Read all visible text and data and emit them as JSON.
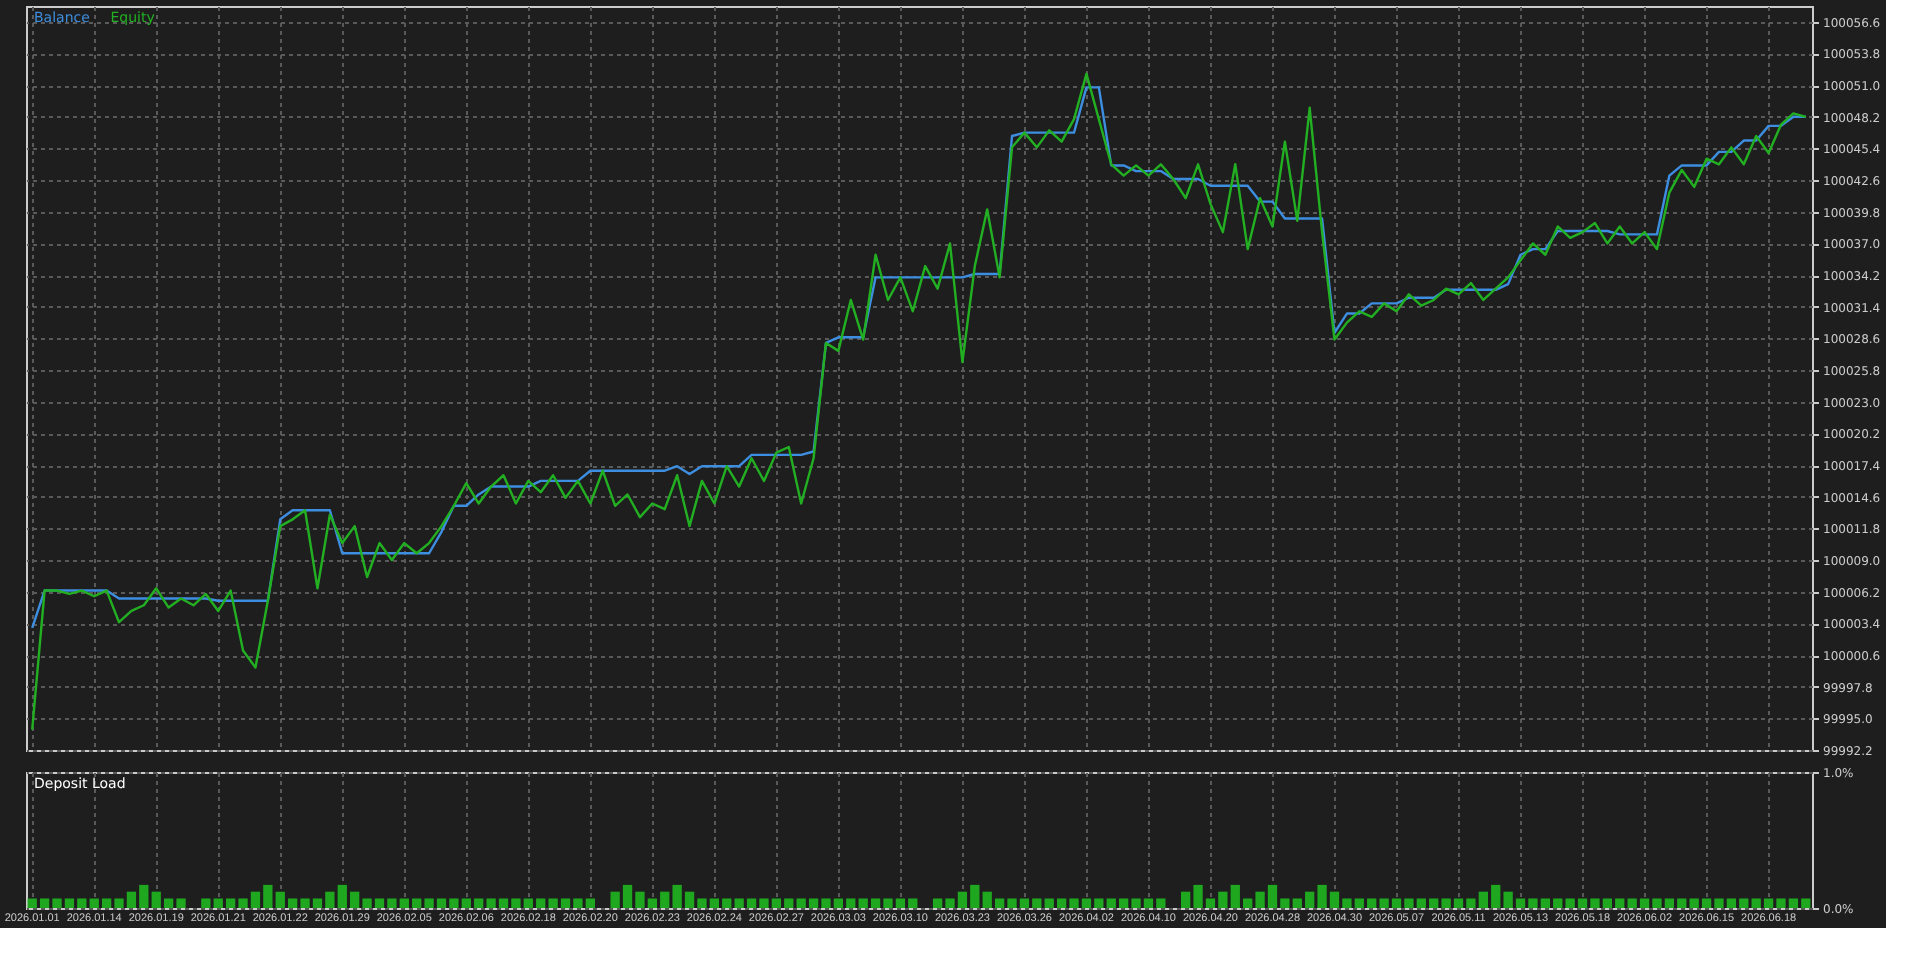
{
  "chart_data": [
    {
      "type": "line",
      "legend": "top left",
      "grid": true,
      "tick_labels": "y",
      "categories": [
        "2026.01.01",
        null,
        null,
        null,
        null,
        "2026.01.14",
        null,
        null,
        null,
        null,
        "2026.01.19",
        null,
        null,
        null,
        null,
        "2026.01.21",
        null,
        null,
        null,
        null,
        "2026.01.22",
        null,
        null,
        null,
        null,
        "2026.01.29",
        null,
        null,
        null,
        null,
        "2026.02.05",
        null,
        null,
        null,
        null,
        "2026.02.06",
        null,
        null,
        null,
        null,
        "2026.02.18",
        null,
        null,
        null,
        null,
        "2026.02.20",
        null,
        null,
        null,
        null,
        "2026.02.23",
        null,
        null,
        null,
        null,
        "2026.02.24",
        null,
        null,
        null,
        null,
        "2026.02.27",
        null,
        null,
        null,
        null,
        "2026.03.03",
        null,
        null,
        null,
        null,
        "2026.03.10",
        null,
        null,
        null,
        null,
        "2026.03.23",
        null,
        null,
        null,
        null,
        "2026.03.26",
        null,
        null,
        null,
        null,
        "2026.04.02",
        null,
        null,
        null,
        null,
        "2026.04.10",
        null,
        null,
        null,
        null,
        "2026.04.20",
        null,
        null,
        null,
        null,
        "2026.04.28",
        null,
        null,
        null,
        null,
        "2026.04.30",
        null,
        null,
        null,
        null,
        "2026.05.07",
        null,
        null,
        null,
        null,
        "2026.05.11",
        null,
        null,
        null,
        null,
        "2026.05.13",
        null,
        null,
        null,
        null,
        "2026.05.18",
        null,
        null,
        null,
        null,
        "2026.06.02",
        null,
        null,
        null,
        null,
        "2026.06.15",
        null,
        null,
        null,
        null,
        "2026.06.18",
        null,
        null,
        null
      ],
      "ylim": [
        99992.2,
        100058.0
      ],
      "yticks": [
        99992.2,
        {
          "value": 99995.0,
          "label": "99995.0"
        },
        99997.8,
        100000.6,
        100003.4,
        100006.2,
        {
          "value": 100009.0,
          "label": "100009.0"
        },
        100011.8,
        100014.6,
        100017.4,
        100020.2,
        {
          "value": 100023.0,
          "label": "100023.0"
        },
        100025.8,
        100028.6,
        100031.4,
        100034.2,
        {
          "value": 100037.0,
          "label": "100037.0"
        },
        100039.8,
        100042.6,
        100045.4,
        100048.2,
        {
          "value": 100051.0,
          "label": "100051.0"
        },
        100053.8,
        100056.6
      ],
      "series": [
        {
          "name": "Balance",
          "color": "#3d8ee0",
          "values": [
            100003.0,
            100006.3,
            100006.3,
            100006.3,
            100006.3,
            100006.3,
            100006.3,
            100005.6,
            100005.6,
            100005.6,
            100005.6,
            100005.6,
            100005.6,
            100005.6,
            100005.6,
            100005.4,
            100005.4,
            100005.4,
            100005.4,
            100005.4,
            100012.6,
            100013.4,
            100013.4,
            100013.4,
            100013.4,
            100009.6,
            100009.6,
            100009.6,
            100009.6,
            100009.6,
            100009.6,
            100009.6,
            100009.6,
            100011.5,
            100013.8,
            100013.8,
            100014.8,
            100015.5,
            100015.5,
            100015.5,
            100015.5,
            100016.0,
            100016.0,
            100016.0,
            100016.0,
            100016.9,
            100016.9,
            100016.9,
            100016.9,
            100016.9,
            100016.9,
            100016.9,
            100017.3,
            100016.6,
            100017.3,
            100017.3,
            100017.3,
            100017.3,
            100018.3,
            100018.3,
            100018.3,
            100018.3,
            100018.3,
            100018.6,
            100028.2,
            100028.7,
            100028.7,
            100028.7,
            100034.0,
            100034.0,
            100034.0,
            100034.0,
            100034.0,
            100034.0,
            100034.0,
            100034.0,
            100034.3,
            100034.3,
            100034.3,
            100046.5,
            100046.8,
            100046.8,
            100046.8,
            100046.8,
            100046.8,
            100050.8,
            100050.8,
            100043.9,
            100043.9,
            100043.4,
            100043.4,
            100043.4,
            100042.7,
            100042.7,
            100042.7,
            100042.1,
            100042.1,
            100042.1,
            100042.1,
            100040.7,
            100040.7,
            100039.2,
            100039.2,
            100039.2,
            100039.2,
            100029.1,
            100030.8,
            100030.8,
            100031.7,
            100031.7,
            100031.7,
            100032.2,
            100032.2,
            100032.2,
            100032.9,
            100032.9,
            100032.9,
            100032.9,
            100032.9,
            100033.4,
            100036.0,
            100036.5,
            100036.5,
            100038.1,
            100038.1,
            100038.1,
            100038.1,
            100038.1,
            100037.8,
            100037.8,
            100037.8,
            100037.8,
            100043.0,
            100043.9,
            100043.9,
            100043.9,
            100045.1,
            100045.1,
            100046.1,
            100046.1,
            100047.4,
            100047.4,
            100048.2,
            100048.2
          ]
        },
        {
          "name": "Equity",
          "color": "#22b022",
          "values": [
            99994.0,
            100006.3,
            100006.3,
            100006.0,
            100006.3,
            100005.8,
            100006.3,
            100003.5,
            100004.5,
            100005.0,
            100006.5,
            100004.8,
            100005.6,
            100005.0,
            100006.0,
            100004.5,
            100006.3,
            100001.0,
            99999.5,
            100005.4,
            100012.0,
            100012.6,
            100013.4,
            100006.5,
            100013.0,
            100010.5,
            100012.0,
            100007.5,
            100010.5,
            100009.0,
            100010.5,
            100009.6,
            100010.5,
            100012.0,
            100013.8,
            100015.8,
            100014.0,
            100015.5,
            100016.5,
            100014.0,
            100016.0,
            100015.0,
            100016.5,
            100014.5,
            100016.0,
            100014.0,
            100016.9,
            100013.8,
            100014.8,
            100012.8,
            100014.0,
            100013.5,
            100016.5,
            100012.0,
            100016.0,
            100014.0,
            100017.3,
            100015.5,
            100018.0,
            100016.0,
            100018.5,
            100019.0,
            100014.0,
            100018.0,
            100028.2,
            100027.5,
            100032.0,
            100028.5,
            100036.0,
            100032.0,
            100034.0,
            100031.0,
            100035.0,
            100033.0,
            100037.0,
            100026.5,
            100035.0,
            100040.0,
            100034.0,
            100045.5,
            100046.8,
            100045.5,
            100047.0,
            100046.0,
            100048.0,
            100052.0,
            100048.0,
            100044.0,
            100043.0,
            100043.9,
            100043.0,
            100044.0,
            100042.7,
            100041.0,
            100044.0,
            100040.5,
            100038.0,
            100044.0,
            100036.5,
            100041.0,
            100038.5,
            100046.0,
            100039.0,
            100049.0,
            100038.0,
            100028.5,
            100030.0,
            100031.0,
            100030.5,
            100031.7,
            100031.0,
            100032.5,
            100031.5,
            100032.0,
            100033.0,
            100032.5,
            100033.5,
            100032.0,
            100033.0,
            100034.0,
            100035.5,
            100037.0,
            100036.0,
            100038.5,
            100037.5,
            100038.0,
            100038.8,
            100037.0,
            100038.5,
            100037.0,
            100038.0,
            100036.5,
            100041.5,
            100043.5,
            100042.0,
            100044.5,
            100044.0,
            100045.5,
            100044.0,
            100046.5,
            100045.0,
            100047.5,
            100048.5,
            100048.2
          ]
        }
      ]
    },
    {
      "type": "bar",
      "title": "Deposit Load",
      "grid": true,
      "color": "#1fa81f",
      "categories": [
        "2026.01.01",
        null,
        null,
        null,
        null,
        "2026.01.14",
        null,
        null,
        null,
        null,
        "2026.01.19",
        null,
        null,
        null,
        null,
        "2026.01.21",
        null,
        null,
        null,
        null,
        "2026.01.22",
        null,
        null,
        null,
        null,
        "2026.01.29",
        null,
        null,
        null,
        null,
        "2026.02.05",
        null,
        null,
        null,
        null,
        "2026.02.06",
        null,
        null,
        null,
        null,
        "2026.02.18",
        null,
        null,
        null,
        null,
        "2026.02.20",
        null,
        null,
        null,
        null,
        "2026.02.23",
        null,
        null,
        null,
        null,
        "2026.02.24",
        null,
        null,
        null,
        null,
        "2026.02.27",
        null,
        null,
        null,
        null,
        "2026.03.03",
        null,
        null,
        null,
        null,
        "2026.03.10",
        null,
        null,
        null,
        null,
        "2026.03.23",
        null,
        null,
        null,
        null,
        "2026.03.26",
        null,
        null,
        null,
        null,
        "2026.04.02",
        null,
        null,
        null,
        null,
        "2026.04.10",
        null,
        null,
        null,
        null,
        "2026.04.20",
        null,
        null,
        null,
        null,
        "2026.04.28",
        null,
        null,
        null,
        null,
        "2026.04.30",
        null,
        null,
        null,
        null,
        "2026.05.07",
        null,
        null,
        null,
        null,
        "2026.05.11",
        null,
        null,
        null,
        null,
        "2026.05.13",
        null,
        null,
        null,
        null,
        "2026.05.18",
        null,
        null,
        null,
        null,
        "2026.06.02",
        null,
        null,
        null,
        null,
        "2026.06.15",
        null,
        null,
        null,
        null,
        "2026.06.18",
        null,
        null,
        null
      ],
      "ylim": [
        0,
        1.0
      ],
      "yticks": [
        {
          "value": 0,
          "label": "0.0%"
        },
        {
          "value": 1.0,
          "label": "1.0%"
        }
      ],
      "values": [
        0.07,
        0.07,
        0.07,
        0.07,
        0.07,
        0.07,
        0.07,
        0.07,
        0.12,
        0.17,
        0.12,
        0.07,
        0.07,
        0,
        0.07,
        0.07,
        0.07,
        0.07,
        0.12,
        0.17,
        0.12,
        0.07,
        0.07,
        0.07,
        0.12,
        0.17,
        0.12,
        0.07,
        0.07,
        0.07,
        0.07,
        0.07,
        0.07,
        0.07,
        0.07,
        0.07,
        0.07,
        0.07,
        0.07,
        0.07,
        0.07,
        0.07,
        0.07,
        0.07,
        0.07,
        0.07,
        0,
        0.12,
        0.17,
        0.12,
        0.07,
        0.12,
        0.17,
        0.12,
        0.07,
        0.07,
        0.07,
        0.07,
        0.07,
        0.07,
        0.07,
        0.07,
        0.07,
        0.07,
        0.07,
        0.07,
        0.07,
        0.07,
        0.07,
        0.07,
        0.07,
        0.07,
        0,
        0.07,
        0.07,
        0.12,
        0.17,
        0.12,
        0.07,
        0.07,
        0.07,
        0.07,
        0.07,
        0.07,
        0.07,
        0.07,
        0.07,
        0.07,
        0.07,
        0.07,
        0.07,
        0.07,
        0,
        0.12,
        0.17,
        0.07,
        0.12,
        0.17,
        0.07,
        0.12,
        0.17,
        0.07,
        0.07,
        0.12,
        0.17,
        0.12,
        0.07,
        0.07,
        0.07,
        0.07,
        0.07,
        0.07,
        0.07,
        0.07,
        0.07,
        0.07,
        0.07,
        0.12,
        0.17,
        0.12,
        0.07,
        0.07,
        0.07,
        0.07,
        0.07,
        0.07,
        0.07,
        0.07,
        0.07,
        0.07,
        0.07,
        0.07,
        0.07,
        0.07,
        0.07,
        0.07,
        0.07,
        0.07,
        0.07,
        0.07,
        0.07,
        0.07,
        0.07,
        0.07
      ]
    }
  ]
}
